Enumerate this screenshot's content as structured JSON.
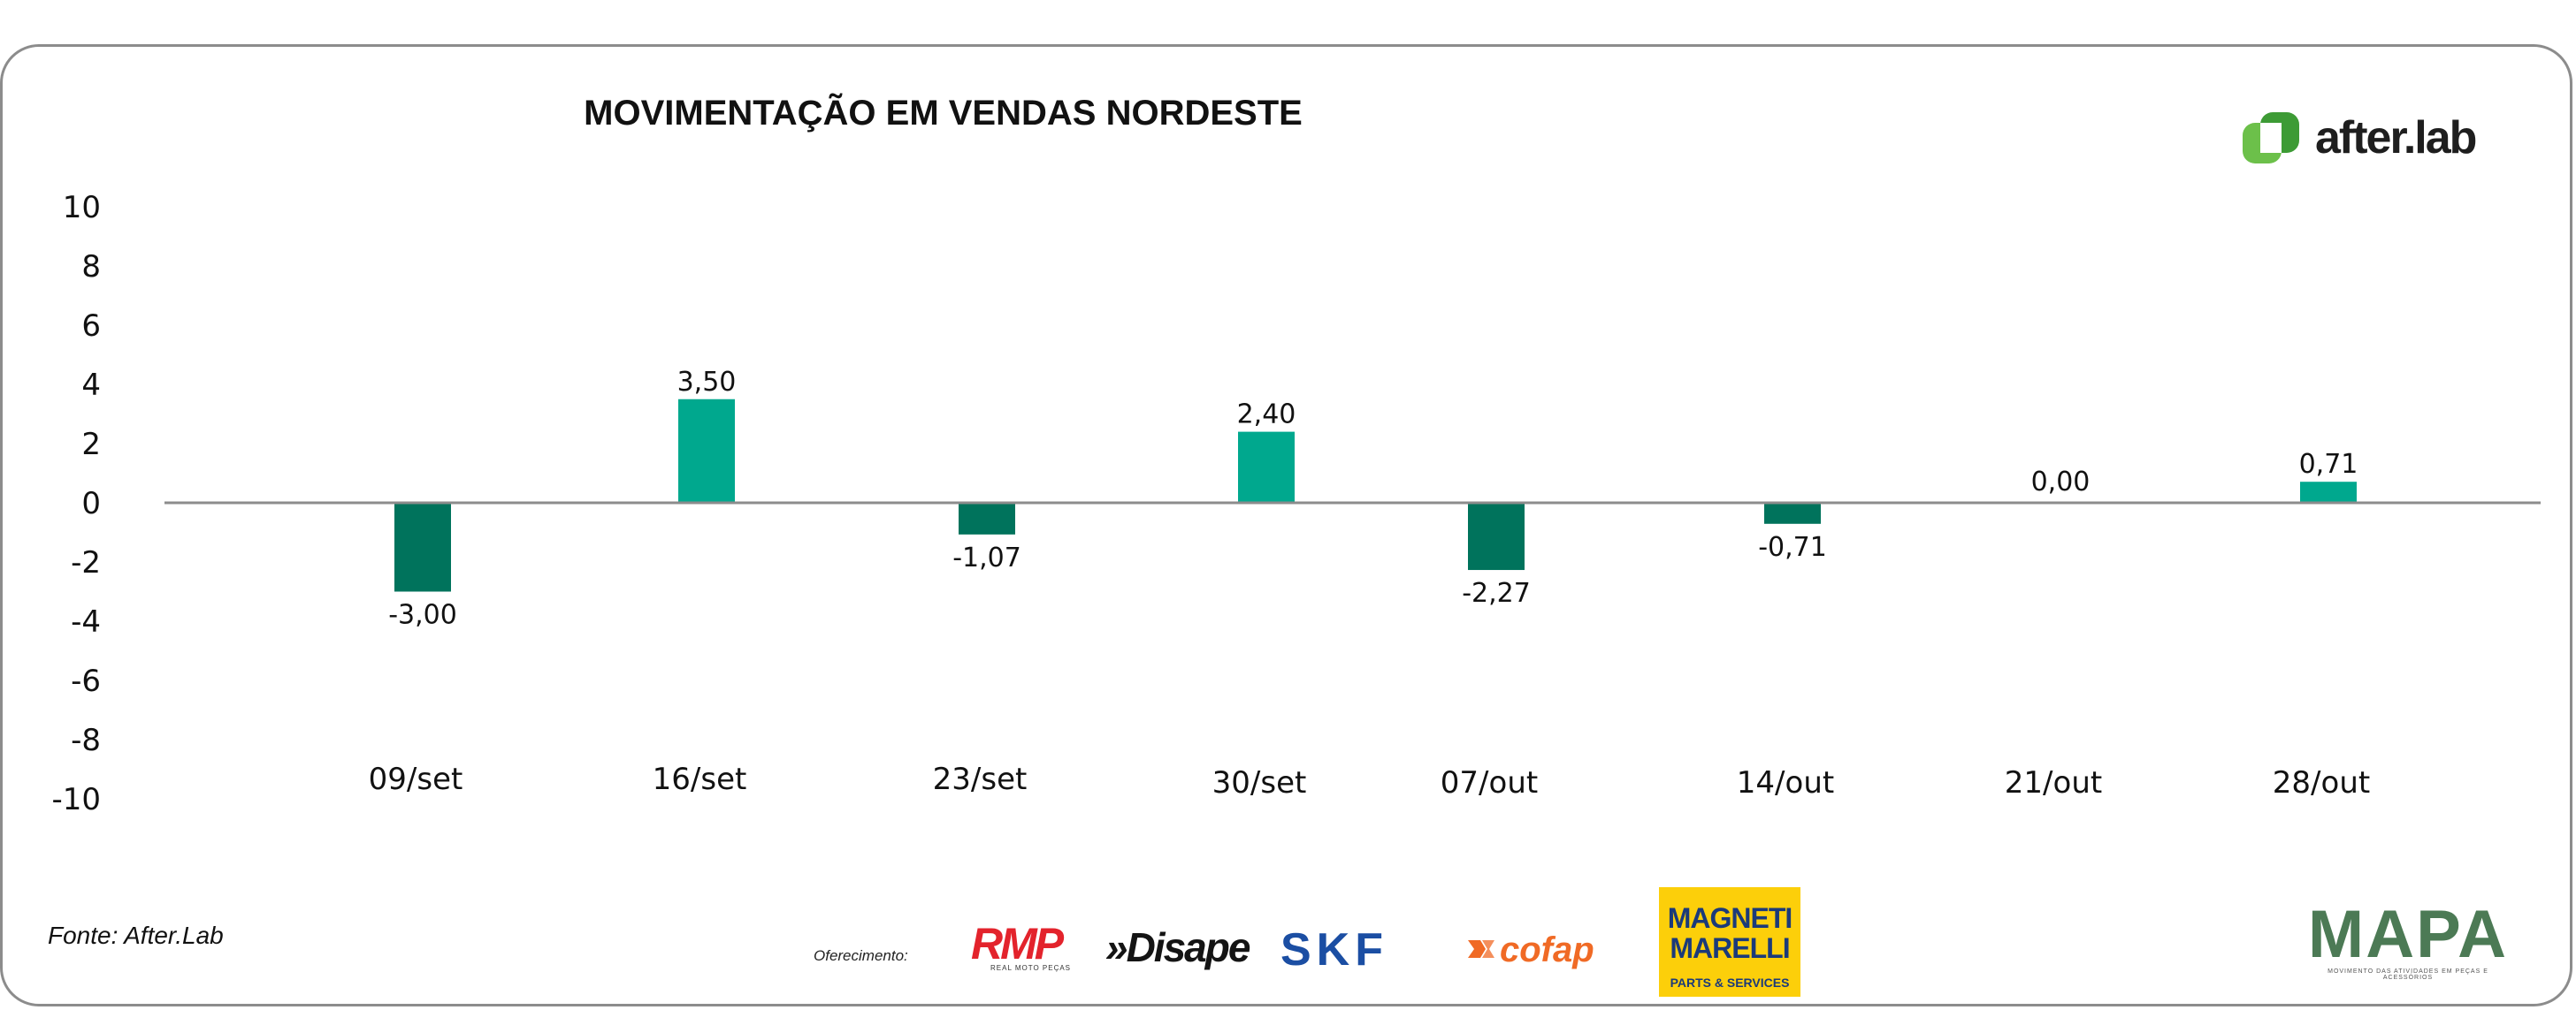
{
  "chart_data": {
    "type": "bar",
    "title": "MOVIMENTAÇÃO EM VENDAS NORDESTE",
    "categories": [
      "09/set",
      "16/set",
      "23/set",
      "30/set",
      "07/out",
      "14/out",
      "21/out",
      "28/out"
    ],
    "values": [
      -3.0,
      3.5,
      -1.07,
      2.4,
      -2.27,
      -0.71,
      0.0,
      0.71
    ],
    "value_labels": [
      "-3,00",
      "3,50",
      "-1,07",
      "2,40",
      "-2,27",
      "-0,71",
      "0,00",
      "0,71"
    ],
    "yticks": [
      10,
      8,
      6,
      4,
      2,
      0,
      -2,
      -4,
      -6,
      -8,
      -10
    ],
    "ylim": [
      -10,
      10
    ],
    "xlabel": "",
    "ylabel": "",
    "grid": false,
    "colors": {
      "positive": "#00a88e",
      "negative": "#00735c",
      "axis": "#8c8c8c"
    }
  },
  "brand": {
    "name": "after.lab",
    "colors": {
      "primary": "#6cc04a",
      "secondary": "#3d9b35"
    }
  },
  "footer": {
    "source": "Fonte: After.Lab",
    "sponsor_label": "Oferecimento:",
    "sponsors": {
      "rmp": {
        "name": "RMP",
        "sub": "REAL MOTO PEÇAS"
      },
      "disape": {
        "name": "»Disape"
      },
      "skf": {
        "name": "SKF"
      },
      "cofap": {
        "name": "cofap"
      },
      "magneti": {
        "line1": "MAGNETI",
        "line2": "MARELLI",
        "sub": "PARTS & SERVICES"
      },
      "mapa": {
        "name": "MAPA",
        "sub": "MOVIMENTO DAS ATIVIDADES EM PEÇAS E ACESSÓRIOS"
      }
    }
  }
}
